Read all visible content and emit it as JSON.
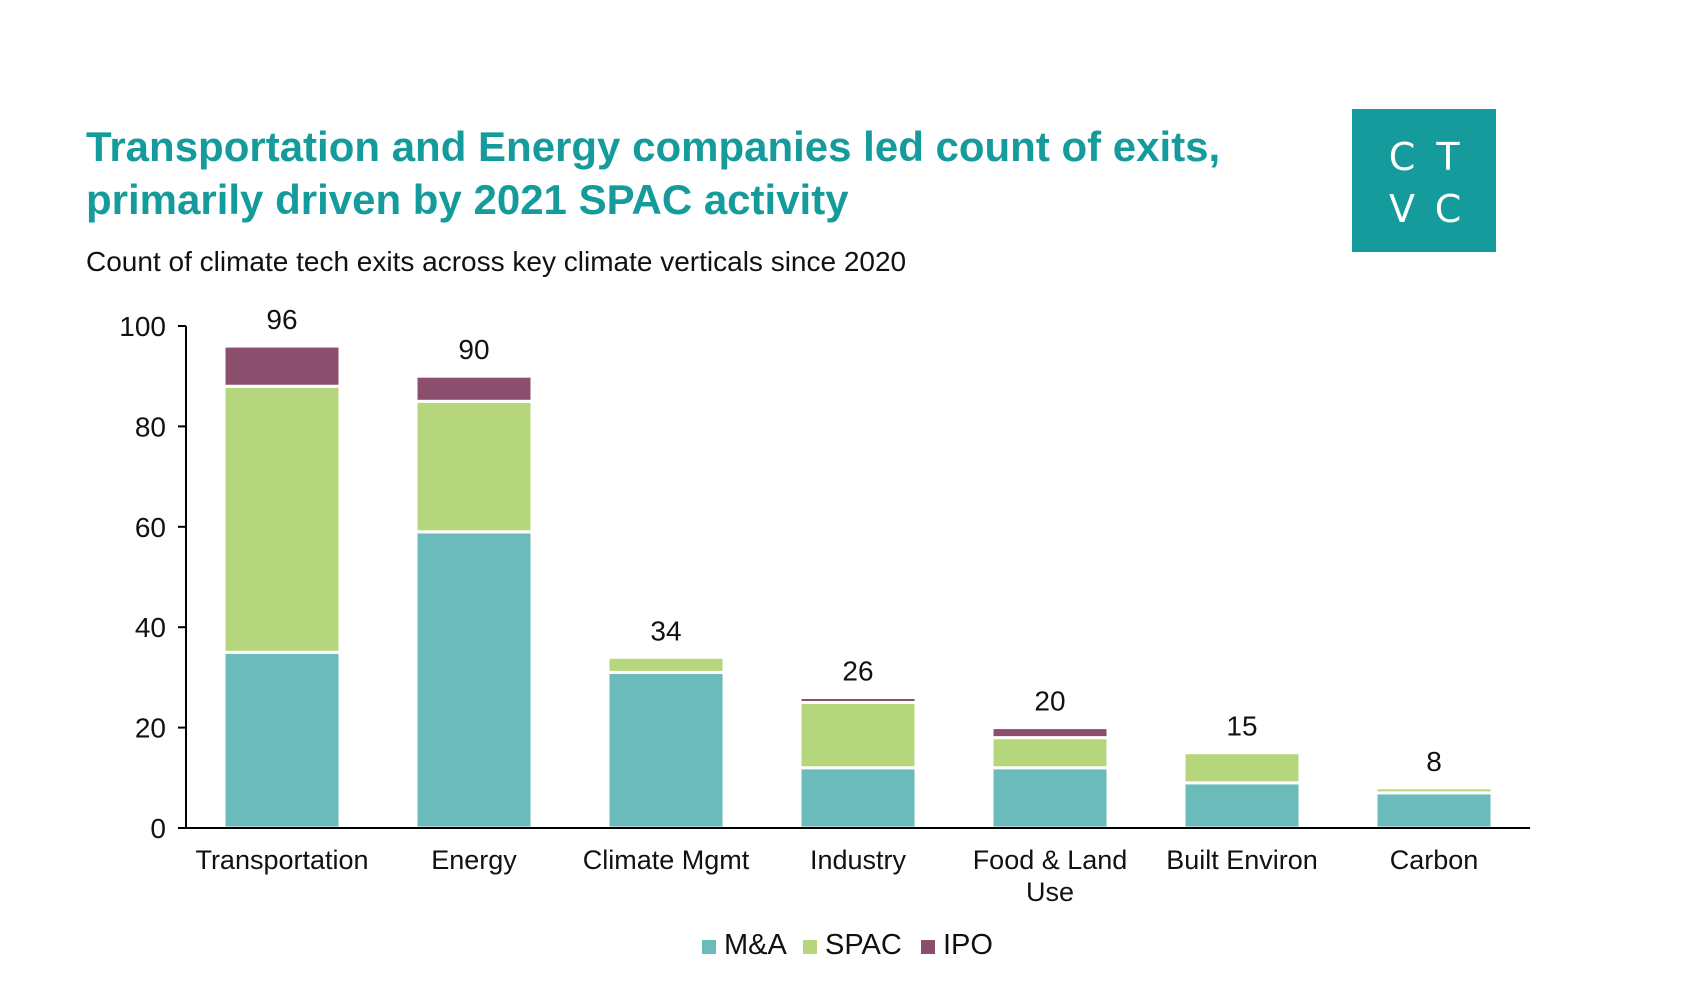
{
  "header": {
    "title": "Transportation and Energy companies led count of exits, primarily driven by 2021 SPAC activity",
    "subtitle": "Count of climate tech exits across key climate verticals since 2020"
  },
  "logo": {
    "letters": [
      "C",
      "T",
      "V",
      "C"
    ],
    "color": "#159b9b"
  },
  "chart_data": {
    "type": "bar",
    "stacked": true,
    "categories": [
      "Transportation",
      "Energy",
      "Climate Mgmt",
      "Industry",
      "Food & Land Use",
      "Built Environ",
      "Carbon"
    ],
    "category_label_lines": [
      [
        "Transportation"
      ],
      [
        "Energy"
      ],
      [
        "Climate Mgmt"
      ],
      [
        "Industry"
      ],
      [
        "Food & Land",
        "Use"
      ],
      [
        "Built Environ"
      ],
      [
        "Carbon"
      ]
    ],
    "series": [
      {
        "name": "M&A",
        "color": "#6bbbbb",
        "values": [
          35,
          59,
          31,
          12,
          12,
          9,
          7
        ]
      },
      {
        "name": "SPAC",
        "color": "#b5d67c",
        "values": [
          53,
          26,
          3,
          13,
          6,
          6,
          1
        ]
      },
      {
        "name": "IPO",
        "color": "#8b4f6d",
        "values": [
          8,
          5,
          0,
          1,
          2,
          0,
          0
        ]
      }
    ],
    "totals": [
      96,
      90,
      34,
      26,
      20,
      15,
      8
    ],
    "ylim": [
      0,
      100
    ],
    "yticks": [
      0,
      20,
      40,
      60,
      80,
      100
    ],
    "xlabel": "",
    "ylabel": "",
    "grid": false,
    "legend": "bottom-center"
  }
}
